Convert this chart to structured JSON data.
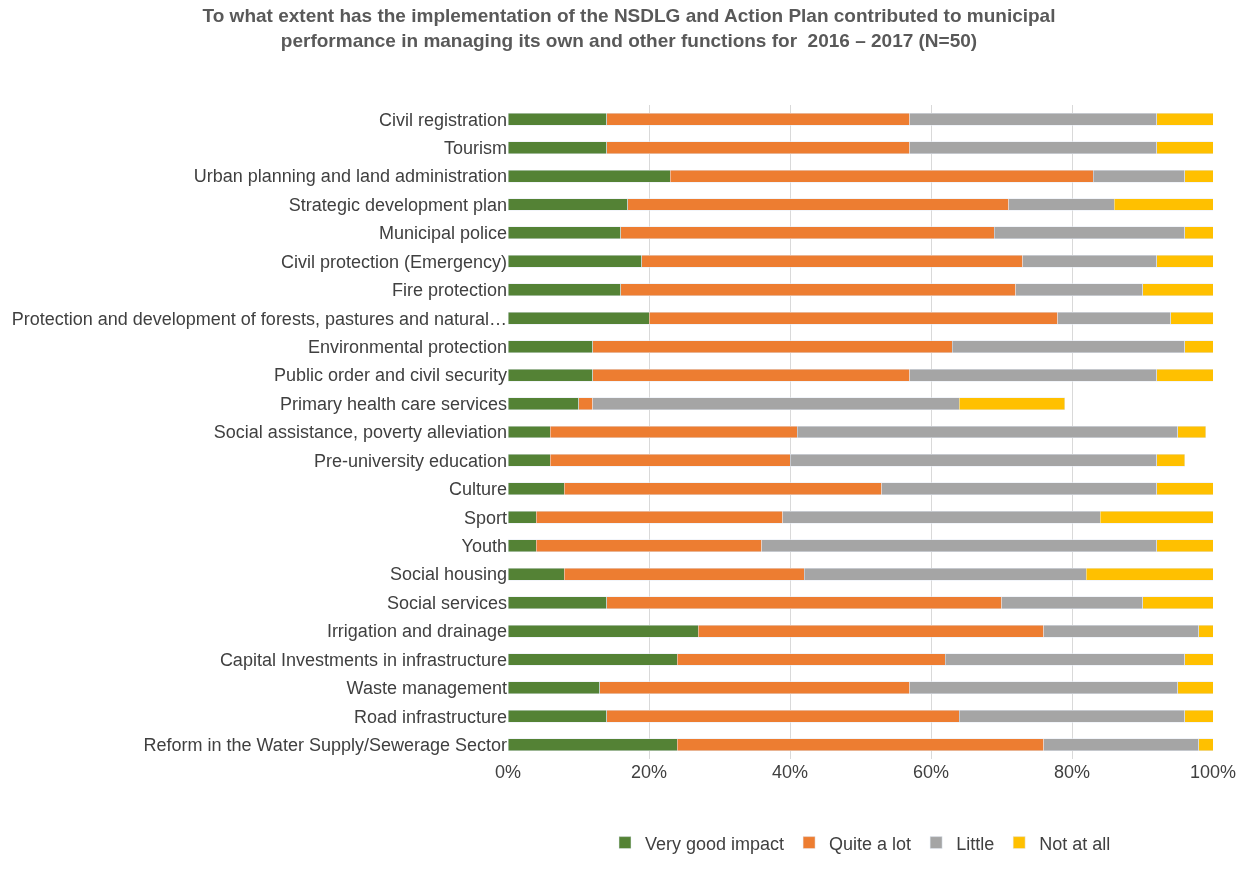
{
  "chart_data": {
    "type": "bar",
    "orientation": "horizontal",
    "stacked": true,
    "title": "To what extent has the implementation of the NSDLG and Action Plan contributed to municipal performance in managing its own and other functions for  2016 – 2017 (N=50)",
    "categories": [
      "Civil registration",
      "Tourism",
      "Urban planning and land administration",
      "Strategic development plan",
      "Municipal police",
      "Civil protection (Emergency)",
      "Fire protection",
      "Protection and development of forests, pastures and natural…",
      "Environmental protection",
      "Public order and civil security",
      "Primary health care services",
      "Social assistance, poverty alleviation",
      "Pre-university education",
      "Culture",
      "Sport",
      "Youth",
      "Social housing",
      "Social services",
      "Irrigation and drainage",
      "Capital Investments in infrastructure",
      "Waste management",
      "Road infrastructure",
      "Reform in the Water Supply/Sewerage Sector"
    ],
    "series": [
      {
        "name": "Very good impact",
        "color": "#548235",
        "values": [
          14,
          14,
          23,
          17,
          16,
          19,
          16,
          20,
          12,
          12,
          10,
          6,
          6,
          8,
          4,
          4,
          8,
          14,
          27,
          24,
          13,
          14,
          24
        ]
      },
      {
        "name": "Quite a lot",
        "color": "#ed7d31",
        "values": [
          43,
          43,
          60,
          54,
          53,
          54,
          56,
          58,
          51,
          45,
          2,
          35,
          34,
          45,
          35,
          32,
          34,
          56,
          49,
          38,
          44,
          50,
          52
        ]
      },
      {
        "name": "Little",
        "color": "#a5a5a5",
        "values": [
          35,
          35,
          13,
          15,
          27,
          19,
          18,
          16,
          33,
          35,
          52,
          54,
          52,
          39,
          45,
          56,
          40,
          20,
          22,
          34,
          38,
          32,
          22
        ]
      },
      {
        "name": "Not at all",
        "color": "#ffc000",
        "values": [
          8,
          8,
          4,
          14,
          4,
          8,
          10,
          6,
          4,
          8,
          15,
          4,
          4,
          8,
          16,
          8,
          18,
          10,
          2,
          4,
          5,
          4,
          2
        ]
      }
    ],
    "xlim": [
      0,
      100
    ],
    "xticks": [
      {
        "value": 0,
        "label": "0%"
      },
      {
        "value": 20,
        "label": "20%"
      },
      {
        "value": 40,
        "label": "40%"
      },
      {
        "value": 60,
        "label": "60%"
      },
      {
        "value": 80,
        "label": "80%"
      },
      {
        "value": 100,
        "label": "100%"
      }
    ],
    "grid": "x",
    "legend": "bottom"
  }
}
